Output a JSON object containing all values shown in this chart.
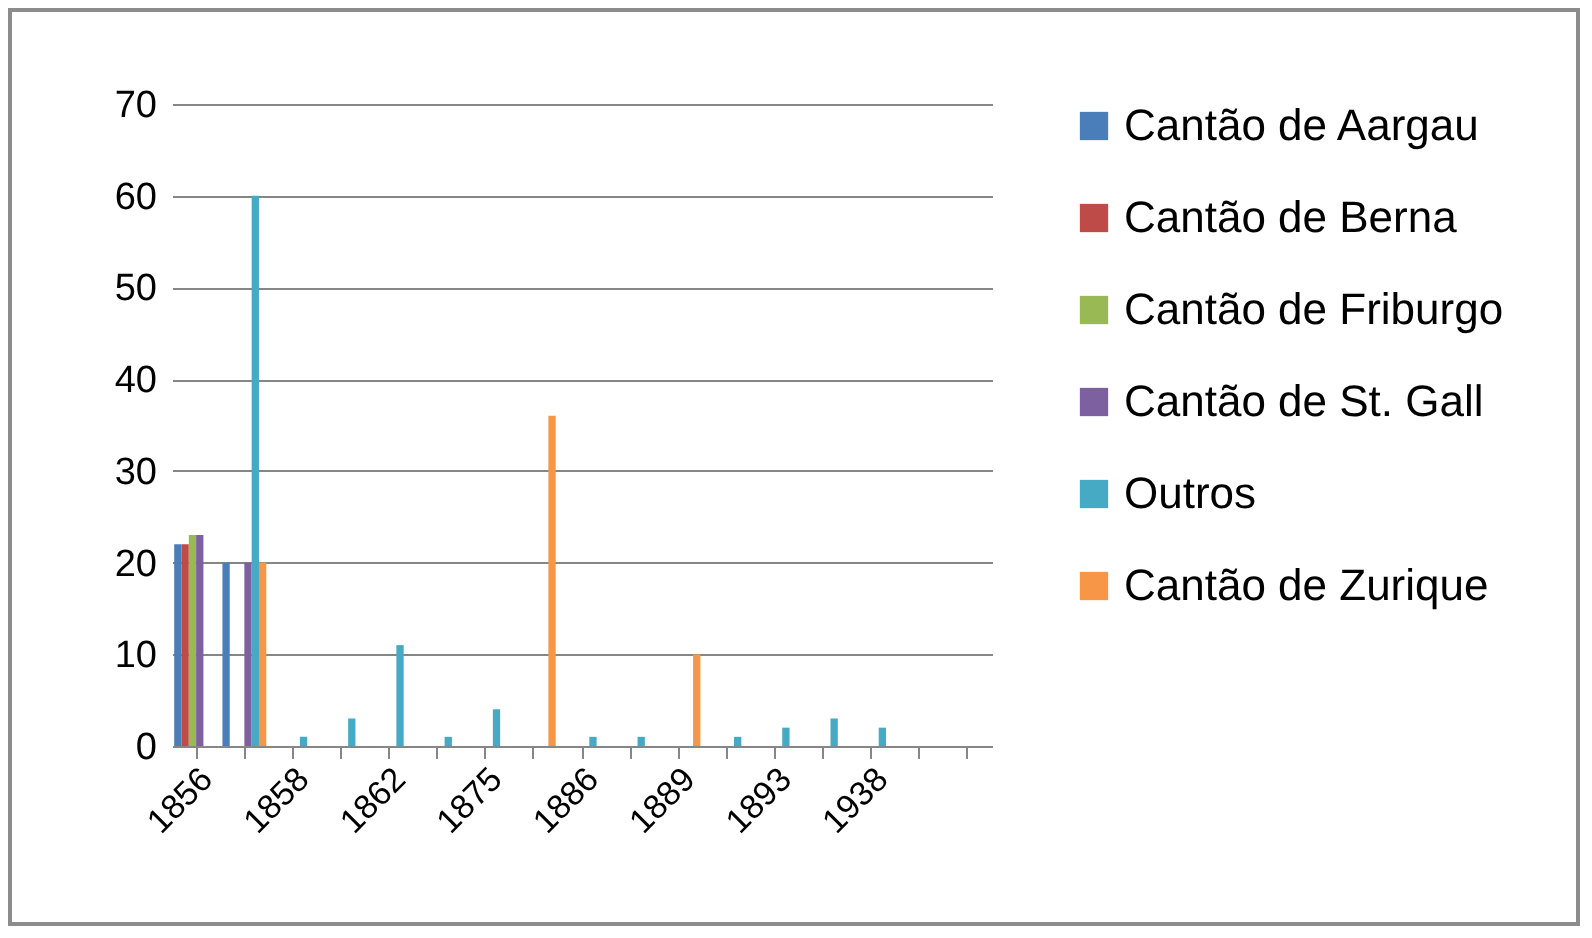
{
  "chart_data": {
    "type": "bar",
    "categories": [
      "1856",
      null,
      "1858",
      null,
      "1862",
      null,
      "1875",
      null,
      "1886",
      null,
      "1889",
      null,
      "1893",
      null,
      "1938",
      null,
      null
    ],
    "series": [
      {
        "name": "Cantão de Aargau",
        "color": "#4a7ebb",
        "values": [
          22,
          20,
          null,
          null,
          null,
          null,
          null,
          null,
          null,
          null,
          null,
          null,
          null,
          null,
          null,
          null,
          null
        ]
      },
      {
        "name": "Cantão de Berna",
        "color": "#be4b48",
        "values": [
          22,
          null,
          null,
          null,
          null,
          null,
          null,
          null,
          null,
          null,
          null,
          null,
          null,
          null,
          null,
          null,
          null
        ]
      },
      {
        "name": "Cantão de Friburgo",
        "color": "#98b954",
        "values": [
          23,
          null,
          null,
          null,
          null,
          null,
          null,
          null,
          null,
          null,
          null,
          null,
          null,
          null,
          null,
          null,
          null
        ]
      },
      {
        "name": "Cantão de St. Gall",
        "color": "#7d60a0",
        "values": [
          23,
          20,
          null,
          null,
          null,
          null,
          null,
          null,
          null,
          null,
          null,
          null,
          null,
          null,
          null,
          null,
          null
        ]
      },
      {
        "name": "Outros",
        "color": "#46aac5",
        "values": [
          null,
          60,
          1,
          3,
          11,
          1,
          4,
          null,
          1,
          1,
          null,
          1,
          2,
          3,
          2,
          null,
          null
        ]
      },
      {
        "name": "Cantão de Zurique",
        "color": "#f79646",
        "values": [
          null,
          20,
          null,
          null,
          null,
          null,
          null,
          36,
          null,
          null,
          10,
          null,
          null,
          null,
          null,
          null,
          null
        ]
      }
    ],
    "ylim": [
      0,
      70
    ],
    "yticks": [
      0,
      10,
      20,
      30,
      40,
      50,
      60,
      70
    ],
    "grid": "y",
    "legend": "right"
  }
}
